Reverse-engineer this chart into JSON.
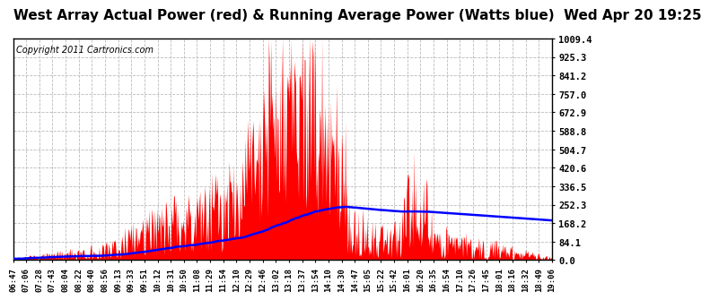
{
  "title": "West Array Actual Power (red) & Running Average Power (Watts blue)  Wed Apr 20 19:25",
  "copyright": "Copyright 2011 Cartronics.com",
  "yticks": [
    0.0,
    84.1,
    168.2,
    252.3,
    336.5,
    420.6,
    504.7,
    588.8,
    672.9,
    757.0,
    841.2,
    925.3,
    1009.4
  ],
  "ymax": 1009.4,
  "ymin": 0.0,
  "x_labels": [
    "06:47",
    "07:06",
    "07:28",
    "07:43",
    "08:04",
    "08:22",
    "08:40",
    "08:56",
    "09:13",
    "09:33",
    "09:51",
    "10:12",
    "10:31",
    "10:50",
    "11:08",
    "11:29",
    "11:54",
    "12:10",
    "12:29",
    "12:46",
    "13:02",
    "13:18",
    "13:37",
    "13:54",
    "14:10",
    "14:30",
    "14:47",
    "15:05",
    "15:22",
    "15:42",
    "16:01",
    "16:20",
    "16:35",
    "16:54",
    "17:10",
    "17:26",
    "17:45",
    "18:01",
    "18:16",
    "18:32",
    "18:49",
    "19:06"
  ],
  "bar_color": "#FF0000",
  "line_color": "#0000FF",
  "background_color": "#FFFFFF",
  "grid_color": "#BBBBBB",
  "title_fontsize": 11,
  "copyright_fontsize": 7
}
